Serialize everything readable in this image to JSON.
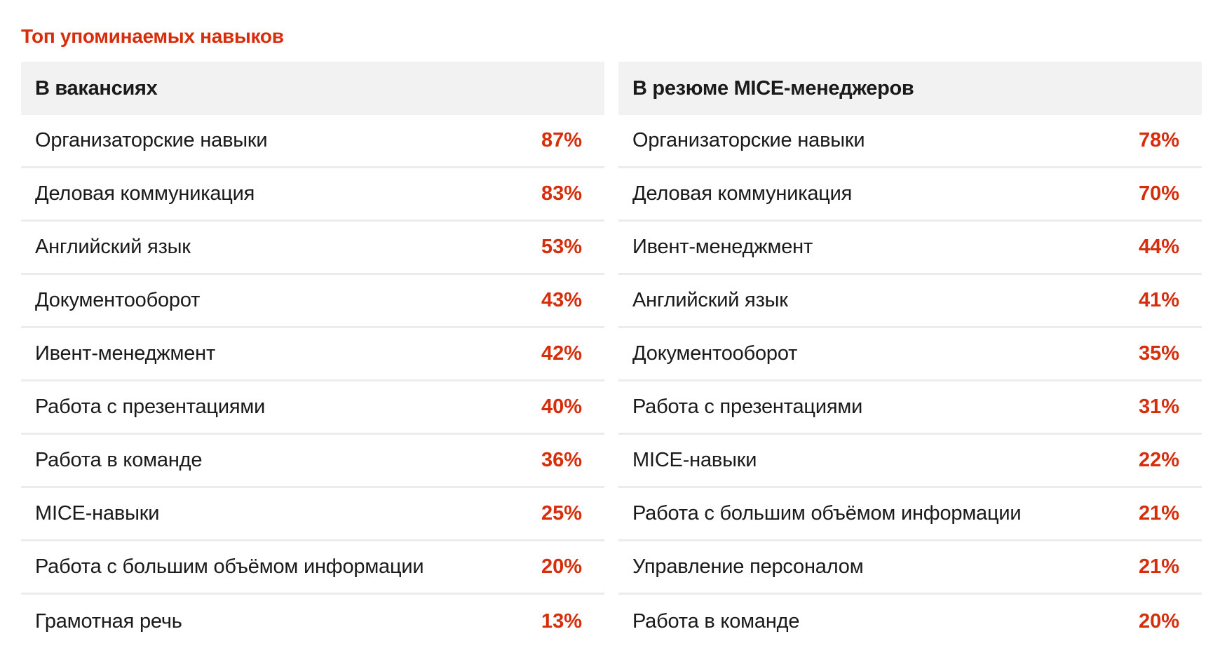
{
  "colors": {
    "accent": "#d62d0b",
    "header_bg": "#f2f2f2",
    "row_divider": "#ececec",
    "text": "#1a1a1a"
  },
  "chart_data": {
    "type": "table",
    "title": "Топ упоминаемых навыков",
    "tables": [
      {
        "header": "В вакансиях",
        "rows": [
          {
            "label": "Организаторские навыки",
            "value": "87%"
          },
          {
            "label": "Деловая коммуникация",
            "value": "83%"
          },
          {
            "label": "Английский язык",
            "value": "53%"
          },
          {
            "label": "Документооборот",
            "value": "43%"
          },
          {
            "label": "Ивент-менеджмент",
            "value": "42%"
          },
          {
            "label": "Работа с презентациями",
            "value": "40%"
          },
          {
            "label": "Работа в команде",
            "value": "36%"
          },
          {
            "label": "MICE-навыки",
            "value": "25%"
          },
          {
            "label": "Работа с большим объёмом информации",
            "value": "20%"
          },
          {
            "label": "Грамотная речь",
            "value": "13%"
          }
        ]
      },
      {
        "header": "В резюме MICE-менеджеров",
        "rows": [
          {
            "label": "Организаторские навыки",
            "value": "78%"
          },
          {
            "label": "Деловая коммуникация",
            "value": "70%"
          },
          {
            "label": "Ивент-менеджмент",
            "value": "44%"
          },
          {
            "label": "Английский язык",
            "value": "41%"
          },
          {
            "label": "Документооборот",
            "value": "35%"
          },
          {
            "label": "Работа с презентациями",
            "value": "31%"
          },
          {
            "label": "MICE-навыки",
            "value": "22%"
          },
          {
            "label": "Работа с большим объёмом информации",
            "value": "21%"
          },
          {
            "label": "Управление персоналом",
            "value": "21%"
          },
          {
            "label": "Работа в команде",
            "value": "20%"
          }
        ]
      }
    ]
  }
}
